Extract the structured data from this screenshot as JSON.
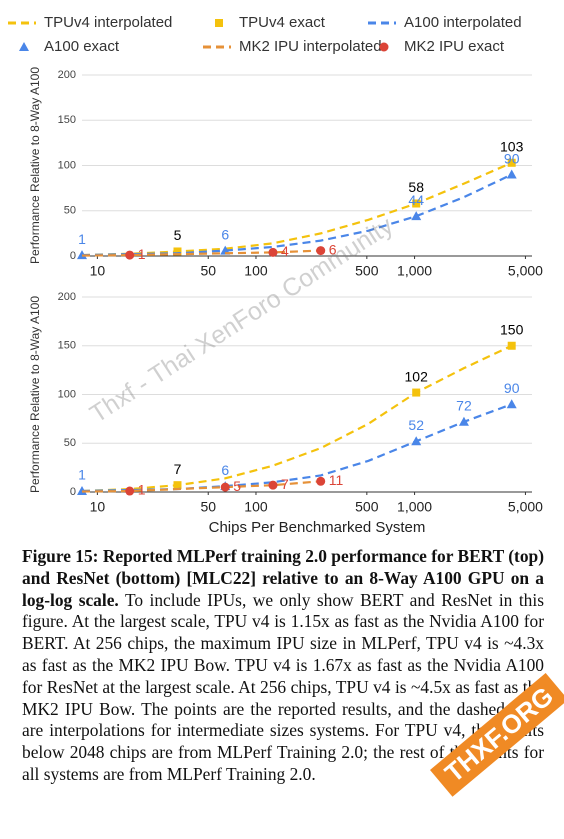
{
  "chart_data": [
    {
      "type": "line",
      "ylabel": "Performance Relative to 8-Way A100",
      "xscale": "log",
      "xlim": [
        8,
        5500
      ],
      "xticks": [
        10,
        50,
        100,
        500,
        {
          "value": 1000,
          "label": "1,000"
        },
        {
          "value": 5000,
          "label": "5,000"
        }
      ],
      "ylim": [
        0,
        200
      ],
      "yticks": [
        0,
        50,
        100,
        150,
        200
      ],
      "grid": true,
      "series": [
        {
          "name": "TPUv4 interpolated",
          "color": "#f4c20d",
          "style": "dashed",
          "x": [
            8,
            16,
            32,
            64,
            128,
            256,
            512,
            1024,
            2048,
            4096
          ],
          "values": [
            1,
            2.5,
            5,
            8,
            14,
            25,
            40,
            58,
            80,
            103
          ]
        },
        {
          "name": "TPUv4 exact",
          "color": "#f4c20d",
          "style": "points",
          "marker": "square",
          "label_color": "#000000",
          "x": [
            32,
            1024,
            4096
          ],
          "values": [
            5,
            58,
            103
          ]
        },
        {
          "name": "A100 interpolated",
          "color": "#4a86e8",
          "style": "dashed",
          "x": [
            8,
            16,
            32,
            64,
            128,
            256,
            512,
            1024,
            2048,
            4096
          ],
          "values": [
            1,
            2,
            3,
            6,
            10,
            17,
            28,
            44,
            65,
            90
          ]
        },
        {
          "name": "A100 exact",
          "color": "#4a86e8",
          "style": "points",
          "marker": "triangle",
          "label_color": "#4a86e8",
          "x": [
            8,
            64,
            1024,
            4096
          ],
          "values": [
            1,
            6,
            44,
            90
          ]
        },
        {
          "name": "MK2 IPU interpolated",
          "color": "#e69138",
          "style": "dashed",
          "x": [
            8,
            16,
            32,
            64,
            128,
            256
          ],
          "values": [
            0.5,
            1,
            2,
            3,
            4,
            6
          ]
        },
        {
          "name": "MK2 IPU exact",
          "color": "#db4437",
          "style": "points",
          "marker": "circle",
          "label_color": "#db4437",
          "x": [
            16,
            128,
            256
          ],
          "values": [
            1,
            4,
            6
          ]
        }
      ]
    },
    {
      "type": "line",
      "ylabel": "Performance Relative to 8-Way A100",
      "xlabel": "Chips Per Benchmarked System",
      "xscale": "log",
      "xlim": [
        8,
        5500
      ],
      "xticks": [
        10,
        50,
        100,
        500,
        {
          "value": 1000,
          "label": "1,000"
        },
        {
          "value": 5000,
          "label": "5,000"
        }
      ],
      "ylim": [
        0,
        200
      ],
      "yticks": [
        0,
        50,
        100,
        150,
        200
      ],
      "grid": true,
      "series": [
        {
          "color": "#f4c20d",
          "style": "dashed",
          "x": [
            8,
            16,
            32,
            64,
            128,
            256,
            512,
            1024,
            2048,
            4096
          ],
          "values": [
            1,
            3,
            7,
            14,
            27,
            45,
            70,
            102,
            127,
            150
          ]
        },
        {
          "color": "#f4c20d",
          "style": "points",
          "marker": "square",
          "label_color": "#000000",
          "x": [
            32,
            1024,
            4096
          ],
          "values": [
            7,
            102,
            150
          ]
        },
        {
          "color": "#4a86e8",
          "style": "dashed",
          "x": [
            8,
            16,
            32,
            64,
            128,
            256,
            512,
            1024,
            2048,
            4096
          ],
          "values": [
            1,
            2,
            3,
            6,
            10,
            17,
            32,
            52,
            72,
            90
          ]
        },
        {
          "color": "#4a86e8",
          "style": "points",
          "marker": "triangle",
          "label_color": "#4a86e8",
          "x": [
            8,
            64,
            1024,
            2048,
            4096
          ],
          "values": [
            1,
            6,
            52,
            72,
            90
          ]
        },
        {
          "color": "#e69138",
          "style": "dashed",
          "x": [
            8,
            16,
            32,
            64,
            128,
            256
          ],
          "values": [
            0.5,
            1,
            3,
            5,
            7,
            11
          ]
        },
        {
          "color": "#db4437",
          "style": "points",
          "marker": "circle",
          "label_color": "#db4437",
          "x": [
            16,
            64,
            128,
            256
          ],
          "values": [
            1,
            5,
            7,
            11
          ]
        }
      ]
    }
  ],
  "caption": {
    "title": "Figure 15: Reported MLPerf training 2.0 performance for BERT (top) and ResNet (bottom) [MLC22] relative to an 8-Way A100 GPU on a log-log scale.",
    "text": "To include IPUs, we only show BERT and ResNet in this figure. At the largest scale, TPU v4 is 1.15x as fast as the Nvidia A100 for BERT. At 256 chips, the maximum IPU size in MLPerf, TPU v4 is ~4.3x as fast as the MK2 IPU Bow. TPU v4 is 1.67x as fast as the Nvidia A100 for ResNet at the largest scale. At 256 chips, TPU v4 is ~4.5x as fast as the MK2 IPU Bow. The points are the reported results, and the dashed lines are interpolations for intermediate sizes systems. For TPU v4, the results below 2048 chips are from MLPerf Training 2.0; the rest of the points for all systems are from MLPerf Training 2.0."
  },
  "watermark": {
    "text": "Thxf - Thai XenForo Community",
    "badge": "THXF.ORG"
  }
}
